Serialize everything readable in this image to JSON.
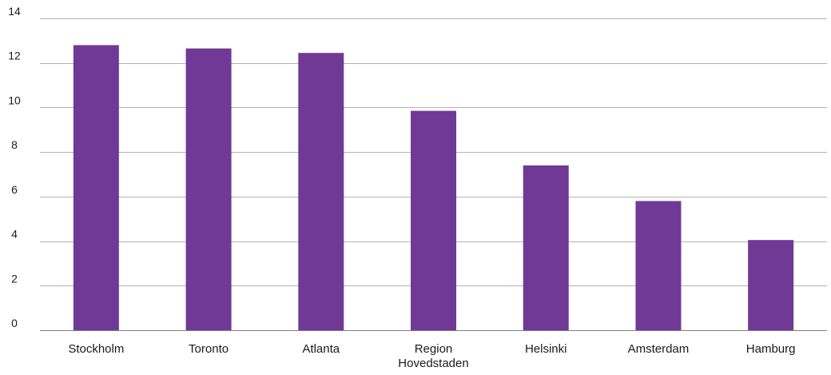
{
  "chart_data": {
    "type": "bar",
    "categories": [
      "Stockholm",
      "Toronto",
      "Atlanta",
      "Region Hovedstaden",
      "Helsinki",
      "Amsterdam",
      "Hamburg"
    ],
    "category_label_lines": [
      [
        "Stockholm"
      ],
      [
        "Toronto"
      ],
      [
        "Atlanta"
      ],
      [
        "Region",
        "Hovedstaden"
      ],
      [
        "Helsinki"
      ],
      [
        "Amsterdam"
      ],
      [
        "Hamburg"
      ]
    ],
    "values": [
      12.8,
      12.65,
      12.45,
      9.85,
      7.4,
      5.8,
      4.05
    ],
    "title": "",
    "xlabel": "",
    "ylabel": "",
    "ylim": [
      0,
      14
    ],
    "yticks": [
      0,
      2,
      4,
      6,
      8,
      10,
      12,
      14
    ],
    "grid": true,
    "legend": "none",
    "colors": {
      "bar": "#713996",
      "grid": "#b3b3b3",
      "axis": "#7f7f7f",
      "text": "#1a1a1a"
    }
  }
}
